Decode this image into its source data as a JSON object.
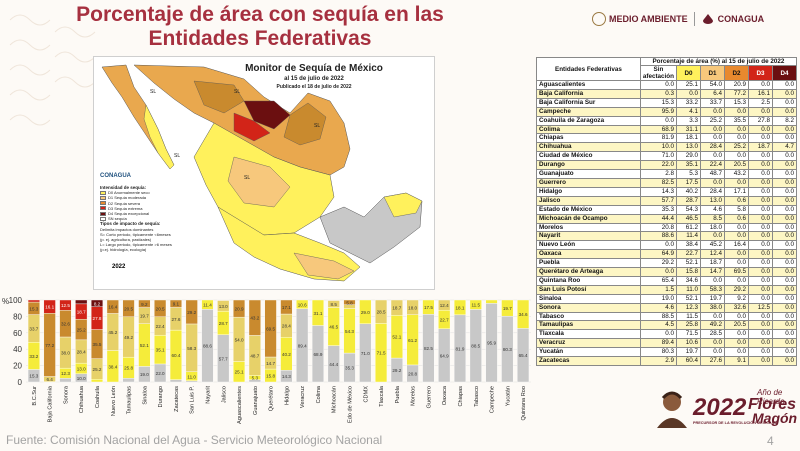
{
  "header": {
    "title_line1": "Porcentaje de área con sequía en las",
    "title_line2": "Entidades Federativas"
  },
  "logos": {
    "medio_ambiente": "MEDIO AMBIENTE",
    "conagua": "CONAGUA"
  },
  "map": {
    "title": "Monitor de Sequía de México",
    "subtitle": "al 15 de julio de 2022",
    "published": "Publicado el 18 de julio de 2022",
    "logo_text": "CONAGUA",
    "legend_title": "Intensidad de sequía:",
    "legend_items": [
      {
        "label": "D0 Anormalmente seco",
        "color": "#fff15c"
      },
      {
        "label": "D1 Sequía moderada",
        "color": "#f7c87c"
      },
      {
        "label": "D2 Sequía severa",
        "color": "#e8892e"
      },
      {
        "label": "D3 Sequía extrema",
        "color": "#d22418"
      },
      {
        "label": "D4 Sequía excepcional",
        "color": "#6b0f10"
      },
      {
        "label": "SN sequía",
        "color": "#ffffff"
      }
    ],
    "impact_title": "Tipos de impacto de sequía:",
    "impact_line": "Delimita impactos dominantes",
    "impact_s": "S= Corto periodo, típicamente <6meses",
    "impact_s2": "(p. ej. agricultura, pastizales)",
    "impact_l": "L= Largo periodo, típicamente >6 meses",
    "impact_l2": "(p.ej. hidrología, ecología)",
    "labels": [
      "SL",
      "SL",
      "SL",
      "SL",
      "SL"
    ],
    "year": "2022"
  },
  "table": {
    "header_col": "Entidades Federativas",
    "header_group": "Porcentaje de área (%) al 15 de julio de 2022",
    "header_sin": "Sin afectación",
    "columns": [
      "D0",
      "D1",
      "D2",
      "D3",
      "D4"
    ],
    "rows": [
      {
        "name": "Aguascalientes",
        "values": [
          "0.0",
          "25.1",
          "54.0",
          "20.9",
          "0.0",
          "0.0"
        ]
      },
      {
        "name": "Baja California",
        "values": [
          "0.3",
          "0.0",
          "6.4",
          "77.2",
          "16.1",
          "0.0"
        ]
      },
      {
        "name": "Baja California Sur",
        "values": [
          "15.3",
          "33.2",
          "33.7",
          "15.3",
          "2.5",
          "0.0"
        ]
      },
      {
        "name": "Campeche",
        "values": [
          "95.9",
          "4.1",
          "0.0",
          "0.0",
          "0.0",
          "0.0"
        ]
      },
      {
        "name": "Coahuila de Zaragoza",
        "values": [
          "0.0",
          "3.3",
          "25.2",
          "35.5",
          "27.8",
          "8.2"
        ]
      },
      {
        "name": "Colima",
        "values": [
          "68.9",
          "31.1",
          "0.0",
          "0.0",
          "0.0",
          "0.0"
        ]
      },
      {
        "name": "Chiapas",
        "values": [
          "81.9",
          "18.1",
          "0.0",
          "0.0",
          "0.0",
          "0.0"
        ]
      },
      {
        "name": "Chihuahua",
        "values": [
          "10.0",
          "13.0",
          "28.4",
          "25.2",
          "18.7",
          "4.7"
        ]
      },
      {
        "name": "Ciudad de México",
        "values": [
          "71.0",
          "29.0",
          "0.0",
          "0.0",
          "0.0",
          "0.0"
        ]
      },
      {
        "name": "Durango",
        "values": [
          "22.0",
          "35.1",
          "22.4",
          "20.5",
          "0.0",
          "0.0"
        ]
      },
      {
        "name": "Guanajuato",
        "values": [
          "2.8",
          "5.3",
          "48.7",
          "43.2",
          "0.0",
          "0.0"
        ]
      },
      {
        "name": "Guerrero",
        "values": [
          "82.5",
          "17.5",
          "0.0",
          "0.0",
          "0.0",
          "0.0"
        ]
      },
      {
        "name": "Hidalgo",
        "values": [
          "14.3",
          "40.2",
          "28.4",
          "17.1",
          "0.0",
          "0.0"
        ]
      },
      {
        "name": "Jalisco",
        "values": [
          "57.7",
          "28.7",
          "13.0",
          "0.6",
          "0.0",
          "0.0"
        ]
      },
      {
        "name": "Estado de México",
        "values": [
          "35.3",
          "54.3",
          "4.6",
          "5.8",
          "0.0",
          "0.0"
        ]
      },
      {
        "name": "Michoacán de Ocampo",
        "values": [
          "44.4",
          "46.5",
          "8.5",
          "0.6",
          "0.0",
          "0.0"
        ]
      },
      {
        "name": "Morelos",
        "values": [
          "20.8",
          "61.2",
          "18.0",
          "0.0",
          "0.0",
          "0.0"
        ]
      },
      {
        "name": "Nayarit",
        "values": [
          "88.6",
          "11.4",
          "0.0",
          "0.0",
          "0.0",
          "0.0"
        ]
      },
      {
        "name": "Nuevo León",
        "values": [
          "0.0",
          "38.4",
          "45.2",
          "16.4",
          "0.0",
          "0.0"
        ]
      },
      {
        "name": "Oaxaca",
        "values": [
          "64.9",
          "22.7",
          "12.4",
          "0.0",
          "0.0",
          "0.0"
        ]
      },
      {
        "name": "Puebla",
        "values": [
          "29.2",
          "52.1",
          "18.7",
          "0.0",
          "0.0",
          "0.0"
        ]
      },
      {
        "name": "Querétaro de Arteaga",
        "values": [
          "0.0",
          "15.8",
          "14.7",
          "69.5",
          "0.0",
          "0.0"
        ]
      },
      {
        "name": "Quintana Roo",
        "values": [
          "65.4",
          "34.6",
          "0.0",
          "0.0",
          "0.0",
          "0.0"
        ]
      },
      {
        "name": "San Luis Potosí",
        "values": [
          "1.5",
          "11.0",
          "58.3",
          "29.2",
          "0.0",
          "0.0"
        ]
      },
      {
        "name": "Sinaloa",
        "values": [
          "19.0",
          "52.1",
          "19.7",
          "9.2",
          "0.0",
          "0.0"
        ]
      },
      {
        "name": "Sonora",
        "values": [
          "4.6",
          "12.3",
          "38.0",
          "32.6",
          "12.5",
          "0.0"
        ]
      },
      {
        "name": "Tabasco",
        "values": [
          "88.5",
          "11.5",
          "0.0",
          "0.0",
          "0.0",
          "0.0"
        ]
      },
      {
        "name": "Tamaulipas",
        "values": [
          "4.5",
          "25.8",
          "49.2",
          "20.5",
          "0.0",
          "0.0"
        ]
      },
      {
        "name": "Tlaxcala",
        "values": [
          "0.0",
          "71.5",
          "28.5",
          "0.0",
          "0.0",
          "0.0"
        ]
      },
      {
        "name": "Veracruz",
        "values": [
          "89.4",
          "10.6",
          "0.0",
          "0.0",
          "0.0",
          "0.0"
        ]
      },
      {
        "name": "Yucatán",
        "values": [
          "80.3",
          "19.7",
          "0.0",
          "0.0",
          "0.0",
          "0.0"
        ]
      },
      {
        "name": "Zacatecas",
        "values": [
          "2.9",
          "60.4",
          "27.6",
          "9.1",
          "0.0",
          "0.0"
        ]
      }
    ]
  },
  "chart_data": {
    "type": "bar",
    "stacked": true,
    "title": "",
    "ylabel": "%",
    "ylim": [
      0,
      100
    ],
    "yticks": [
      "0",
      "20",
      "40",
      "60",
      "80",
      "100"
    ],
    "categories": [
      "B.C.Sur",
      "Baja California",
      "Sonora",
      "Chihuahua",
      "Coahuila",
      "Nuevo León",
      "Tamaulipas",
      "Sinaloa",
      "Durango",
      "Zacatecas",
      "San Luis P.",
      "Nayarit",
      "Jalisco",
      "Aguascalientes",
      "Guanajuato",
      "Querétaro",
      "Hidalgo",
      "Veracruz",
      "Colima",
      "Michoacán",
      "Edo de México",
      "CDMX",
      "Tlaxcala",
      "Puebla",
      "Morelos",
      "Guerrero",
      "Oaxaca",
      "Chiapas",
      "Tabasco",
      "Campeche",
      "Yucatán",
      "Quintana Roo"
    ],
    "series": [
      {
        "name": "Sin afectación",
        "color": "#c8c8c8",
        "values": [
          15.3,
          0.3,
          4.6,
          10.0,
          0.0,
          0.0,
          4.5,
          19.0,
          22.0,
          2.9,
          1.5,
          88.6,
          57.7,
          0.0,
          2.8,
          0.0,
          14.3,
          89.4,
          68.9,
          44.4,
          35.3,
          71.0,
          0.0,
          29.2,
          20.8,
          82.5,
          64.9,
          81.9,
          88.5,
          95.9,
          80.3,
          65.4
        ]
      },
      {
        "name": "D0",
        "color": "#f5ec3a",
        "values": [
          33.2,
          0.0,
          12.3,
          13.0,
          3.3,
          38.4,
          25.8,
          52.1,
          35.1,
          60.4,
          11.0,
          11.4,
          28.7,
          25.1,
          5.3,
          15.8,
          40.2,
          10.6,
          31.1,
          46.5,
          54.3,
          29.0,
          71.5,
          52.1,
          61.2,
          17.5,
          22.7,
          18.1,
          11.5,
          4.1,
          19.7,
          34.6
        ]
      },
      {
        "name": "D1",
        "color": "#e7d169",
        "values": [
          33.7,
          6.4,
          38.0,
          28.4,
          25.2,
          45.2,
          49.2,
          19.7,
          22.4,
          27.6,
          58.3,
          0.0,
          13.0,
          54.0,
          48.7,
          14.7,
          28.4,
          0.0,
          0.0,
          8.5,
          4.6,
          0.0,
          28.5,
          18.7,
          18.0,
          0.0,
          12.4,
          0.0,
          0.0,
          0.0,
          0.0,
          0.0
        ]
      },
      {
        "name": "D2",
        "color": "#c98a2e",
        "values": [
          15.3,
          77.2,
          32.6,
          25.2,
          35.5,
          16.4,
          20.5,
          9.2,
          20.5,
          9.1,
          29.2,
          0.0,
          0.6,
          20.9,
          43.2,
          69.5,
          17.1,
          0.0,
          0.0,
          0.6,
          5.8,
          0.0,
          0.0,
          0.0,
          0.0,
          0.0,
          0.0,
          0.0,
          0.0,
          0.0,
          0.0,
          0.0
        ]
      },
      {
        "name": "D3",
        "color": "#d22418",
        "values": [
          2.5,
          16.1,
          12.5,
          18.7,
          27.8,
          0.0,
          0.0,
          0.0,
          0.0,
          0.0,
          0.0,
          0.0,
          0.0,
          0.0,
          0.0,
          0.0,
          0.0,
          0.0,
          0.0,
          0.0,
          0.0,
          0.0,
          0.0,
          0.0,
          0.0,
          0.0,
          0.0,
          0.0,
          0.0,
          0.0,
          0.0,
          0.0
        ]
      },
      {
        "name": "D4",
        "color": "#6b0f10",
        "values": [
          0.0,
          0.0,
          0.0,
          4.7,
          8.2,
          0.0,
          0.0,
          0.0,
          0.0,
          0.0,
          0.0,
          0.0,
          0.0,
          0.0,
          0.0,
          0.0,
          0.0,
          0.0,
          0.0,
          0.0,
          0.0,
          0.0,
          0.0,
          0.0,
          0.0,
          0.0,
          0.0,
          0.0,
          0.0,
          0.0,
          0.0,
          0.0
        ]
      }
    ]
  },
  "footer": {
    "source": "Fuente: Comisión Nacional del Agua - Servicio Meteorológico Nacional",
    "page": "4"
  },
  "year_logo": {
    "year": "2022",
    "ano_de": "Año de",
    "name1": "Ricardo",
    "name2": "Flores",
    "name3": "Magón",
    "subtitle": "PRECURSOR DE LA REVOLUCIÓN MEXICANA"
  }
}
